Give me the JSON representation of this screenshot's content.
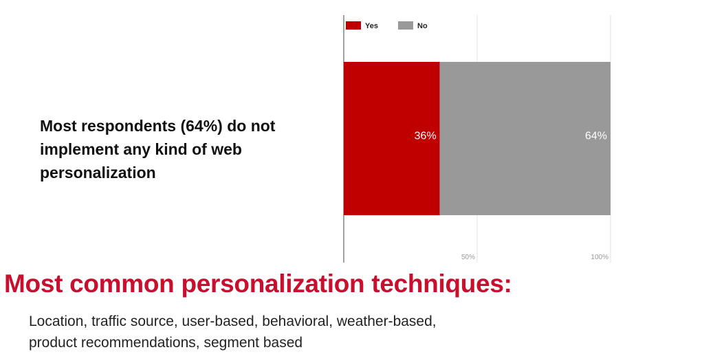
{
  "statement": "Most respondents (64%) do not implement any kind of web personalization",
  "headline": "Most common personalization techniques:",
  "techniques_line1": "Location, traffic source, user-based, behavioral, weather-based,",
  "techniques_line2": "product recommendations, segment based",
  "colors": {
    "yes": "#c00000",
    "no": "#999999",
    "headline": "#c8102e"
  },
  "chart_data": {
    "type": "bar",
    "orientation": "horizontal",
    "stacked": true,
    "categories": [
      ""
    ],
    "series": [
      {
        "name": "Yes",
        "values": [
          36
        ],
        "label": "36%"
      },
      {
        "name": "No",
        "values": [
          64
        ],
        "label": "64%"
      }
    ],
    "xlim": [
      0,
      100
    ],
    "xticks": [
      50,
      100
    ],
    "xtick_labels": [
      "50%",
      "100%"
    ],
    "legend": "top-left",
    "grid": true
  }
}
